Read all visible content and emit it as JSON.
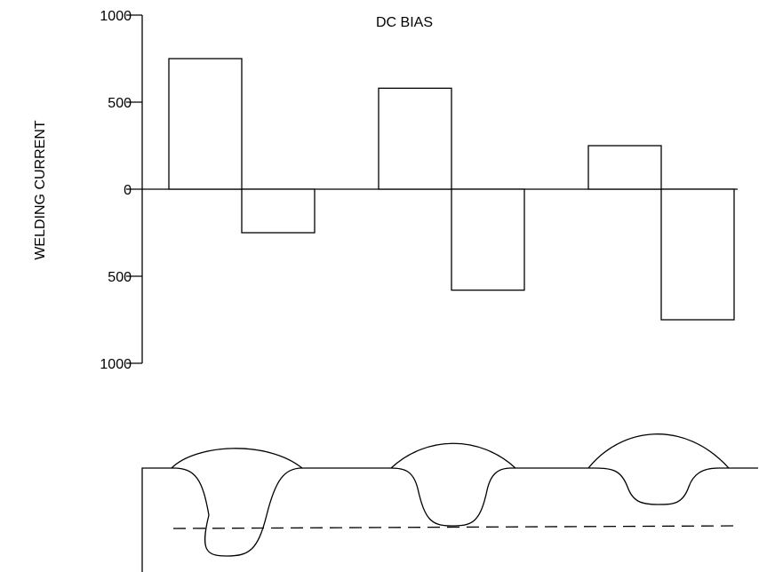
{
  "title": "DC BIAS",
  "y_axis_label": "WELDING CURRENT",
  "y_ticks": [
    {
      "value": 1000,
      "label": "1000"
    },
    {
      "value": 500,
      "label": "500"
    },
    {
      "value": 0,
      "label": "0"
    },
    {
      "value": -500,
      "label": "500"
    },
    {
      "value": -1000,
      "label": "1000"
    }
  ],
  "chart_data": {
    "type": "bar",
    "title": "DC BIAS",
    "ylabel": "WELDING CURRENT",
    "ylim": [
      -1000,
      1000
    ],
    "values": [
      750,
      -250,
      580,
      -580,
      250,
      -750
    ]
  }
}
